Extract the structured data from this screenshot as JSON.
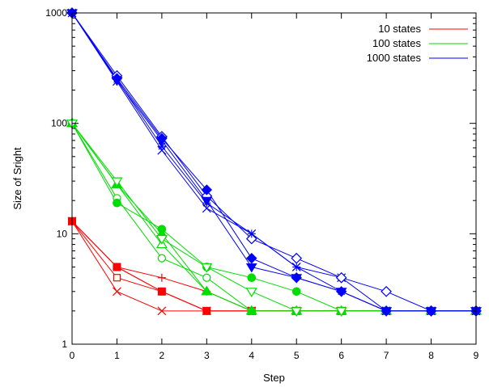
{
  "chart_data": {
    "type": "line",
    "title": "",
    "xlabel": "Step",
    "ylabel": "Size of Sright",
    "x_ticks": [
      "0",
      "1",
      "2",
      "3",
      "4",
      "5",
      "6",
      "7",
      "8",
      "9"
    ],
    "y_ticks": [
      {
        "value": 1,
        "label": "1"
      },
      {
        "value": 10,
        "label": "10"
      },
      {
        "value": 100,
        "label": "100"
      },
      {
        "value": 1000,
        "label": "1000"
      }
    ],
    "xlim": [
      0,
      9
    ],
    "ylim": [
      1,
      1000
    ],
    "y_scale": "log",
    "grid": false,
    "legend_position": "top-right",
    "legend": [
      {
        "label": "10 states",
        "color": "#ff0000"
      },
      {
        "label": "100 states",
        "color": "#00dd00"
      },
      {
        "label": "1000 states",
        "color": "#0000ff"
      }
    ],
    "groups": [
      {
        "color": "#ff0000",
        "runs": [
          {
            "marker": "cross",
            "x": [
              0,
              1,
              2,
              3,
              4,
              5,
              6,
              7,
              8,
              9
            ],
            "y": [
              13,
              3,
              2,
              2,
              2,
              2,
              2,
              2,
              2,
              2
            ]
          },
          {
            "marker": "square-open",
            "x": [
              0,
              1,
              2,
              3,
              4,
              5,
              6,
              7,
              8,
              9
            ],
            "y": [
              13,
              4,
              3,
              2,
              2,
              2,
              2,
              2,
              2,
              2
            ]
          },
          {
            "marker": "plus",
            "x": [
              0,
              1,
              2,
              3,
              4,
              5,
              6,
              7,
              8,
              9
            ],
            "y": [
              13,
              5,
              4,
              3,
              2,
              2,
              2,
              2,
              2,
              2
            ]
          },
          {
            "marker": "square-filled",
            "x": [
              0,
              1,
              2,
              3,
              4,
              5,
              6,
              7,
              8,
              9
            ],
            "y": [
              13,
              5,
              3,
              2,
              2,
              2,
              2,
              2,
              2,
              2
            ]
          },
          {
            "marker": "x",
            "x": [
              0,
              1,
              2,
              3,
              4,
              5,
              6,
              7,
              8,
              9
            ],
            "y": [
              13,
              5,
              3,
              2,
              2,
              2,
              2,
              2,
              2,
              2
            ]
          }
        ]
      },
      {
        "color": "#00dd00",
        "runs": [
          {
            "marker": "circle-open",
            "x": [
              0,
              1,
              2,
              3,
              4,
              5,
              6,
              7,
              8,
              9
            ],
            "y": [
              100,
              21,
              6,
              4,
              2,
              2,
              2,
              2,
              2,
              2
            ]
          },
          {
            "marker": "circle-filled",
            "x": [
              0,
              1,
              2,
              3,
              4,
              5,
              6,
              7,
              8,
              9
            ],
            "y": [
              100,
              19,
              11,
              5,
              4,
              3,
              2,
              2,
              2,
              2
            ]
          },
          {
            "marker": "triangle-open",
            "x": [
              0,
              1,
              2,
              3,
              4,
              5,
              6,
              7,
              8,
              9
            ],
            "y": [
              100,
              28,
              8,
              3,
              2,
              2,
              2,
              2,
              2,
              2
            ]
          },
          {
            "marker": "triangle-filled",
            "x": [
              0,
              1,
              2,
              3,
              4,
              5,
              6,
              7,
              8,
              9
            ],
            "y": [
              100,
              28,
              10,
              3,
              2,
              2,
              2,
              2,
              2,
              2
            ]
          },
          {
            "marker": "triangle-down-open",
            "x": [
              0,
              1,
              2,
              3,
              4,
              5,
              6,
              7,
              8,
              9
            ],
            "y": [
              100,
              30,
              9,
              5,
              3,
              2,
              2,
              2,
              2,
              2
            ]
          }
        ]
      },
      {
        "color": "#0000ff",
        "runs": [
          {
            "marker": "cross",
            "x": [
              0,
              1,
              2,
              3,
              4,
              5,
              6,
              7,
              8,
              9
            ],
            "y": [
              1000,
              240,
              57,
              17,
              10,
              5,
              4,
              2,
              2,
              2
            ]
          },
          {
            "marker": "diamond-open",
            "x": [
              0,
              1,
              2,
              3,
              4,
              5,
              6,
              7,
              8,
              9
            ],
            "y": [
              1000,
              270,
              76,
              22,
              9,
              6,
              4,
              3,
              2,
              2
            ]
          },
          {
            "marker": "triangle-down-filled",
            "x": [
              0,
              1,
              2,
              3,
              4,
              5,
              6,
              7,
              8,
              9
            ],
            "y": [
              1000,
              245,
              70,
              20,
              5,
              4,
              3,
              2,
              2,
              2
            ]
          },
          {
            "marker": "diamond-filled",
            "x": [
              0,
              1,
              2,
              3,
              4,
              5,
              6,
              7,
              8,
              9
            ],
            "y": [
              1000,
              255,
              73,
              25,
              6,
              4,
              3,
              2,
              2,
              2
            ]
          },
          {
            "marker": "x",
            "x": [
              0,
              1,
              2,
              3,
              4,
              5,
              6,
              7,
              8,
              9
            ],
            "y": [
              1000,
              250,
              62,
              19,
              10,
              5,
              3,
              2,
              2,
              2
            ]
          }
        ]
      }
    ]
  }
}
